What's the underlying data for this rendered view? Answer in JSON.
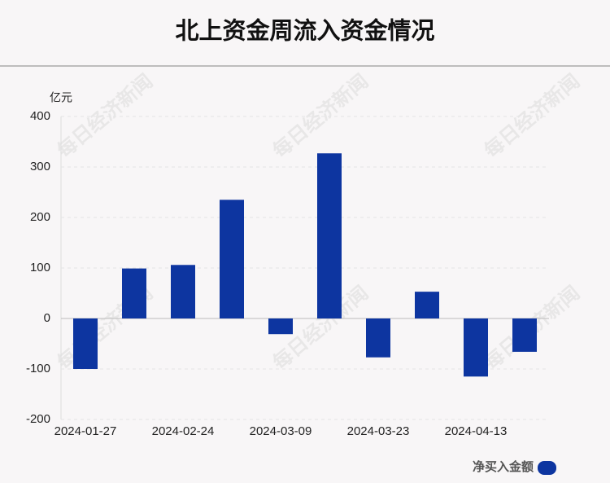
{
  "chart_data": {
    "type": "bar",
    "title": "北上资金周流入资金情况",
    "y_label": "亿元",
    "watermark": "每日经济新闻",
    "categories": [
      "2024-01-27",
      null,
      "2024-02-24",
      null,
      "2024-03-09",
      null,
      "2024-03-23",
      null,
      "2024-04-13",
      null
    ],
    "series": [
      {
        "name": "净买入金额",
        "color": "#0d35a0",
        "values": [
          -100,
          99,
          106,
          235,
          -31,
          327,
          -77,
          53,
          -115,
          -66
        ]
      }
    ],
    "ylim": [
      -200,
      400
    ],
    "yticks": [
      -200,
      -100,
      0,
      100,
      200,
      300,
      400
    ],
    "grid": true
  }
}
